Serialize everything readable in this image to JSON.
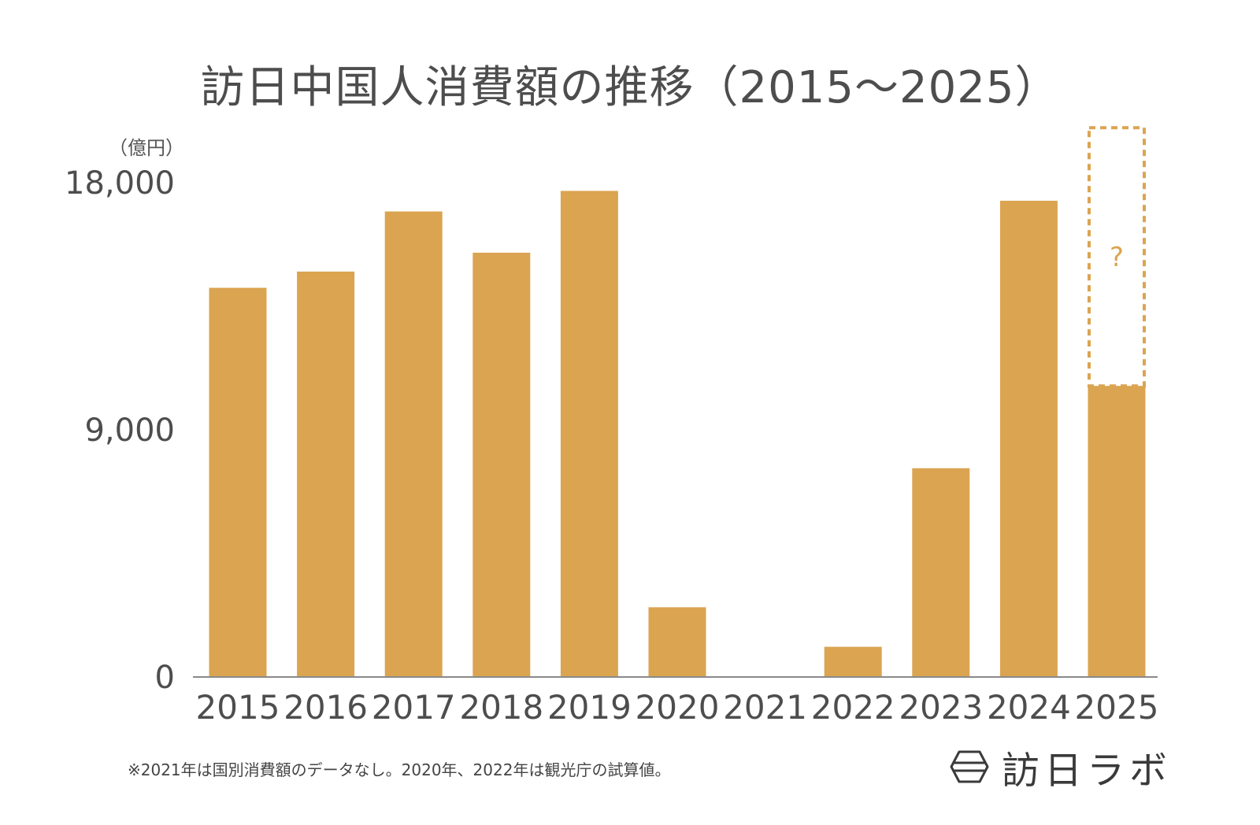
{
  "chart_data": {
    "type": "bar",
    "title": "訪日中国人消費額の推移（2015〜2025）",
    "ylabel": "（億円）",
    "xlabel": "",
    "ylim": [
      0,
      18000
    ],
    "yticks": [
      "0",
      "9,000",
      "18,000"
    ],
    "yticks_values": [
      0,
      9000,
      18000
    ],
    "categories": [
      "2015",
      "2016",
      "2017",
      "2018",
      "2019",
      "2020",
      "2021",
      "2022",
      "2023",
      "2024",
      "2025"
    ],
    "values": [
      14170,
      14760,
      16950,
      15450,
      17700,
      2540,
      0,
      1100,
      7600,
      17340,
      10600
    ],
    "projection": {
      "category": "2025",
      "upper_value": 20000,
      "label": "?"
    },
    "grid": false,
    "legend": "none",
    "colors": {
      "bar": "#DBA451",
      "axis": "#8a8a8a",
      "text": "#4d4d4d"
    }
  },
  "footnote": "※2021年は国別消費額のデータなし。2020年、2022年は観光庁の試算値。",
  "logo": {
    "text": "訪日ラボ",
    "icon": "hexagon-logo-icon"
  }
}
